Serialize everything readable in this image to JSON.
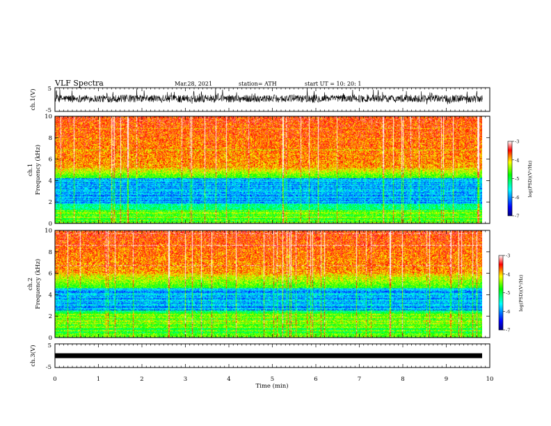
{
  "header": {
    "title": "VLF Spectra",
    "date": "Mar.28, 2021",
    "station": "station= ATH",
    "start": "start  UT  =    10: 20: 1"
  },
  "colors": {
    "spectrogram_scale": [
      "#000090",
      "#0000ff",
      "#00ffff",
      "#00ff00",
      "#ffff00",
      "#ff0000",
      "#ffffff"
    ],
    "waveform": "#000000"
  },
  "chart_data": [
    {
      "type": "line",
      "id": "ch1-waveform",
      "ylabel": "ch.1(V)",
      "ylim": [
        -5,
        5
      ],
      "yticks": [
        "5",
        "-5"
      ],
      "xlim": [
        0,
        10
      ],
      "description_values": {
        "approx_amplitude_range_V": [
          -2,
          3
        ]
      }
    },
    {
      "type": "heatmap",
      "id": "ch1-spectrogram",
      "ylabel": "ch.1\nFrequency (kHz)",
      "ylabel_top": "ch.1",
      "ylabel_bottom": "Frequency (kHz)",
      "ylim": [
        0,
        10
      ],
      "yticks": [
        "0",
        "2",
        "4",
        "6",
        "8",
        "10"
      ],
      "xlim": [
        0,
        9.83
      ],
      "colorbar": {
        "range": [
          -7,
          -3
        ],
        "ticks": [
          "-3",
          "-4",
          "-5",
          "-6",
          "-7"
        ],
        "label": "log(PSD)(V²/Hz)"
      },
      "bands_khz": {
        "high_power_above": 5.2,
        "blue_band": [
          1.8,
          4.2
        ],
        "low_lines_below": 1.2
      }
    },
    {
      "type": "heatmap",
      "id": "ch2-spectrogram",
      "ylabel_top": "ch.2",
      "ylabel_bottom": "Frequency (kHz)",
      "ylim": [
        0,
        10
      ],
      "yticks": [
        "0",
        "2",
        "4",
        "6",
        "8",
        "10"
      ],
      "xlim": [
        0,
        9.83
      ],
      "colorbar": {
        "range": [
          -7,
          -3
        ],
        "ticks": [
          "-3",
          "-4",
          "-5",
          "-6",
          "-7"
        ],
        "label": "log(PSD)(V²/Hz)"
      },
      "bands_khz": {
        "high_power_above": 6.0,
        "blue_band": [
          2.5,
          4.6
        ],
        "low_lines_below": 2.3
      }
    },
    {
      "type": "line",
      "id": "ch3-waveform",
      "ylabel": "ch.3(V)",
      "ylim": [
        -5,
        5
      ],
      "yticks": [
        "5",
        "-5"
      ],
      "xlim": [
        0,
        10
      ],
      "xlabel": "Time (min)",
      "xticks": [
        "0",
        "1",
        "2",
        "3",
        "4",
        "5",
        "6",
        "7",
        "8",
        "9",
        "10"
      ],
      "description_values": {
        "constant_level_V": 0
      }
    }
  ]
}
